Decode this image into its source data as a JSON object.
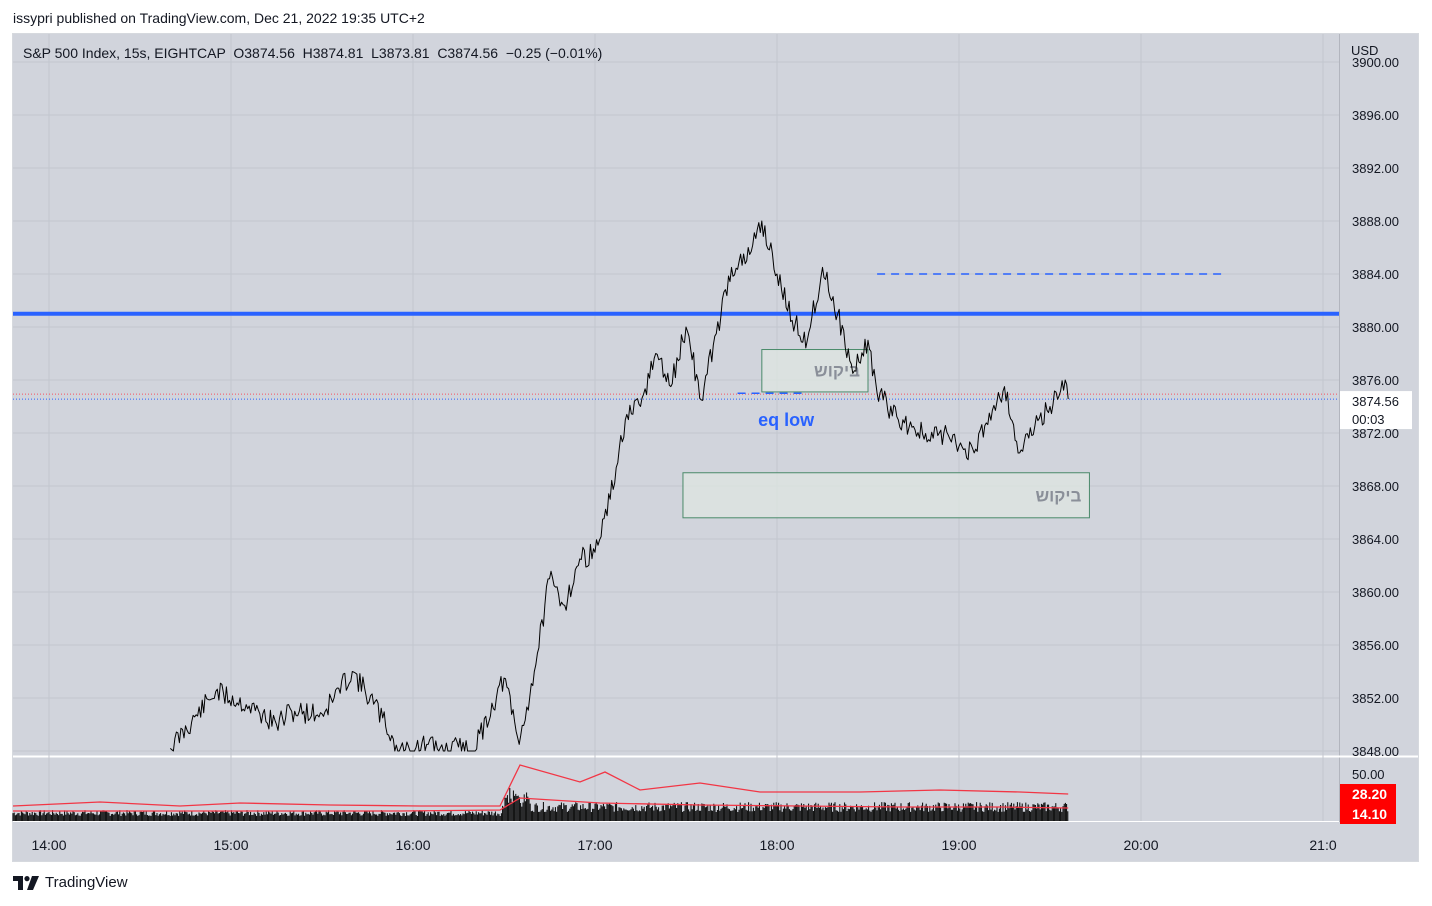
{
  "header": {
    "published": "issypri published on TradingView.com, Dec 21, 2022 19:35 UTC+2"
  },
  "legend": {
    "symbol": "S&P 500 Index, 15s, EIGHTCAP",
    "ohlc": "O3874.56  H3874.81  L3873.81  C3874.56  −0.25 (−0.01%)"
  },
  "footer": {
    "brand": "TradingView",
    "logo_icon": "tradingview-logo-icon"
  },
  "colors": {
    "plot_bg": "#d1d4dc",
    "price_line": "#000000",
    "level_line": "#2962ff",
    "volume_ma": "#f23645",
    "zone_fill": "#dde6e2",
    "zone_border": "#4a8a6a",
    "zone_text": "#8a8f99",
    "annotation_blue": "#2962ff"
  },
  "chart_data": {
    "type": "line",
    "title": "S&P 500 Index, 15s, EIGHTCAP",
    "currency": "USD",
    "x_ticks": [
      "14:00",
      "15:00",
      "16:00",
      "17:00",
      "18:00",
      "19:00",
      "20:00",
      "21:0"
    ],
    "y_ticks": [
      "3848.00",
      "3852.00",
      "3856.00",
      "3860.00",
      "3864.00",
      "3868.00",
      "3872.00",
      "3876.00",
      "3880.00",
      "3884.00",
      "3888.00",
      "3892.00",
      "3896.00",
      "3900.00"
    ],
    "ylim": [
      3848,
      3900
    ],
    "last_price": "3874.56",
    "countdown": "00:03",
    "series": [
      {
        "x": [
          "14:40",
          "14:55",
          "15:05",
          "15:15",
          "15:20",
          "15:30",
          "15:40",
          "15:50",
          "15:55",
          "16:05",
          "16:10",
          "16:15",
          "16:20",
          "16:30",
          "16:35",
          "16:40",
          "16:45",
          "16:50",
          "16:55",
          "17:00",
          "17:05",
          "17:10",
          "17:15",
          "17:20",
          "17:25",
          "17:30",
          "17:35",
          "17:40",
          "17:45",
          "17:50",
          "17:55",
          "18:00",
          "18:05",
          "18:10",
          "18:15",
          "18:20",
          "18:25",
          "18:30",
          "18:33",
          "18:35",
          "18:40",
          "18:45",
          "18:50",
          "18:55",
          "19:00",
          "19:05",
          "19:10",
          "19:15",
          "19:20",
          "19:25",
          "19:30",
          "19:35",
          "19:36"
        ],
        "y": [
          3848.2,
          3852.5,
          3851.5,
          3850.0,
          3851.0,
          3850.8,
          3854.0,
          3850.5,
          3848.0,
          3848.5,
          3848.0,
          3848.3,
          3848.0,
          3853.5,
          3848.5,
          3854.0,
          3861.0,
          3859.0,
          3862.5,
          3863.0,
          3867.0,
          3873.0,
          3874.0,
          3878.0,
          3875.5,
          3880.0,
          3874.5,
          3879.5,
          3884.5,
          3885.0,
          3888.0,
          3884.0,
          3880.5,
          3879.0,
          3884.5,
          3881.0,
          3876.5,
          3879.0,
          3875.0,
          3874.5,
          3873.0,
          3872.5,
          3871.5,
          3872.0,
          3871.0,
          3870.5,
          3873.5,
          3875.5,
          3870.5,
          3872.5,
          3874.0,
          3876.0,
          3874.56
        ]
      }
    ],
    "horizontal_levels": [
      {
        "price": 3881.0,
        "style": "solid"
      },
      {
        "price": 3884.0,
        "style": "dashed",
        "from": "18:33",
        "to": "20:28"
      },
      {
        "price": 3875.0,
        "style": "dashed",
        "from": "17:47",
        "to": "18:10"
      }
    ],
    "zones": [
      {
        "label": "ביקוש",
        "from": "17:55",
        "to": "18:30",
        "top": 3878.3,
        "bottom": 3875.1
      },
      {
        "label": "ביקוש",
        "from": "17:29",
        "to": "19:43",
        "top": 3869.0,
        "bottom": 3865.6
      }
    ],
    "annotations": [
      {
        "text": "eq low",
        "x": "18:03",
        "y": 3873.0
      }
    ],
    "volume_panel": {
      "y_tick": "50.00",
      "badges": [
        "28.20",
        "14.10"
      ]
    }
  }
}
